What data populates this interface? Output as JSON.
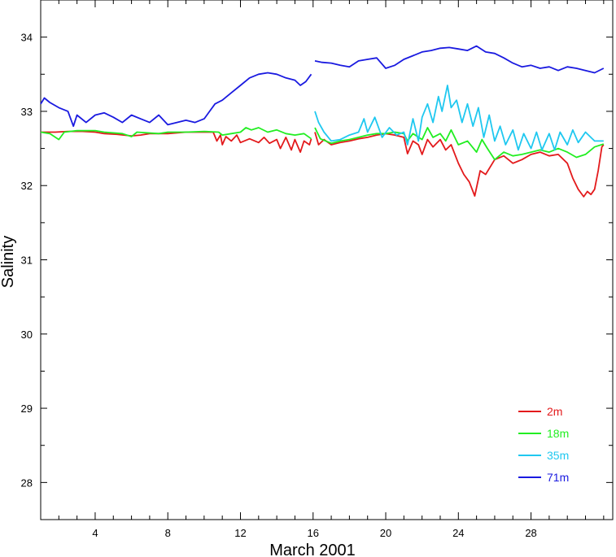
{
  "chart_data": {
    "type": "line",
    "xlabel": "March 2001",
    "ylabel": "Salinity",
    "xlim": [
      1,
      32.5
    ],
    "ylim": [
      27.5,
      34.5
    ],
    "x_ticks": [
      4,
      8,
      12,
      16,
      20,
      24,
      28
    ],
    "x_tick_labels": [
      "4",
      "8",
      "12",
      "16",
      "20",
      "24",
      "28"
    ],
    "y_ticks": [
      28,
      29,
      30,
      31,
      32,
      33,
      34
    ],
    "y_tick_labels": [
      "28",
      "29",
      "30",
      "31",
      "32",
      "33",
      "34"
    ],
    "grid": false,
    "legend_position": "bottom-right",
    "series": [
      {
        "name": "2m",
        "color": "#e31a1c",
        "segments": [
          [
            [
              1.0,
              32.72
            ],
            [
              1.8,
              32.72
            ],
            [
              2.5,
              32.73
            ],
            [
              3.3,
              32.73
            ],
            [
              4.0,
              32.72
            ],
            [
              4.5,
              32.7
            ],
            [
              5.2,
              32.69
            ],
            [
              6.0,
              32.67
            ],
            [
              6.5,
              32.68
            ],
            [
              7.0,
              32.7
            ],
            [
              8.0,
              32.7
            ],
            [
              9.0,
              32.72
            ],
            [
              10.0,
              32.72
            ],
            [
              10.5,
              32.72
            ],
            [
              10.7,
              32.6
            ],
            [
              10.9,
              32.68
            ],
            [
              11.0,
              32.55
            ],
            [
              11.2,
              32.66
            ],
            [
              11.5,
              32.6
            ],
            [
              11.8,
              32.68
            ],
            [
              12.0,
              32.58
            ],
            [
              12.5,
              32.63
            ],
            [
              13.0,
              32.58
            ],
            [
              13.3,
              32.65
            ],
            [
              13.6,
              32.57
            ],
            [
              14.0,
              32.62
            ],
            [
              14.2,
              32.5
            ],
            [
              14.5,
              32.65
            ],
            [
              14.8,
              32.48
            ],
            [
              15.0,
              32.62
            ],
            [
              15.3,
              32.45
            ],
            [
              15.5,
              32.6
            ],
            [
              15.8,
              32.55
            ],
            [
              15.9,
              32.63
            ]
          ],
          [
            [
              16.1,
              32.72
            ],
            [
              16.3,
              32.55
            ],
            [
              16.6,
              32.62
            ],
            [
              17.0,
              32.55
            ],
            [
              17.5,
              32.58
            ],
            [
              18.0,
              32.6
            ],
            [
              18.5,
              32.63
            ],
            [
              19.0,
              32.65
            ],
            [
              19.5,
              32.68
            ],
            [
              20.0,
              32.7
            ],
            [
              20.5,
              32.68
            ],
            [
              21.0,
              32.65
            ],
            [
              21.2,
              32.43
            ],
            [
              21.5,
              32.6
            ],
            [
              21.8,
              32.55
            ],
            [
              22.0,
              32.42
            ],
            [
              22.3,
              32.62
            ],
            [
              22.6,
              32.52
            ],
            [
              23.0,
              32.62
            ],
            [
              23.3,
              32.48
            ],
            [
              23.6,
              32.55
            ],
            [
              24.0,
              32.3
            ],
            [
              24.3,
              32.15
            ],
            [
              24.6,
              32.05
            ],
            [
              24.9,
              31.86
            ],
            [
              25.2,
              32.2
            ],
            [
              25.5,
              32.15
            ],
            [
              26.0,
              32.35
            ],
            [
              26.5,
              32.4
            ],
            [
              27.0,
              32.3
            ],
            [
              27.5,
              32.35
            ],
            [
              28.0,
              32.42
            ],
            [
              28.5,
              32.45
            ],
            [
              29.0,
              32.4
            ],
            [
              29.5,
              32.42
            ],
            [
              30.0,
              32.3
            ],
            [
              30.3,
              32.1
            ],
            [
              30.6,
              31.95
            ],
            [
              30.9,
              31.85
            ],
            [
              31.1,
              31.92
            ],
            [
              31.3,
              31.88
            ],
            [
              31.5,
              31.95
            ],
            [
              31.7,
              32.2
            ],
            [
              31.9,
              32.52
            ],
            [
              32.0,
              32.55
            ]
          ]
        ]
      },
      {
        "name": "18m",
        "color": "#22ee22",
        "segments": [
          [
            [
              1.0,
              32.72
            ],
            [
              1.5,
              32.7
            ],
            [
              2.0,
              32.62
            ],
            [
              2.3,
              32.72
            ],
            [
              3.0,
              32.74
            ],
            [
              4.0,
              32.74
            ],
            [
              4.5,
              32.72
            ],
            [
              5.5,
              32.7
            ],
            [
              6.0,
              32.66
            ],
            [
              6.3,
              32.72
            ],
            [
              7.5,
              32.7
            ],
            [
              8.0,
              32.72
            ],
            [
              9.0,
              32.72
            ],
            [
              10.0,
              32.73
            ],
            [
              10.8,
              32.72
            ],
            [
              11.0,
              32.68
            ],
            [
              11.5,
              32.7
            ],
            [
              12.0,
              32.72
            ],
            [
              12.3,
              32.78
            ],
            [
              12.6,
              32.75
            ],
            [
              13.0,
              32.78
            ],
            [
              13.5,
              32.72
            ],
            [
              14.0,
              32.75
            ],
            [
              14.5,
              32.7
            ],
            [
              15.0,
              32.68
            ],
            [
              15.5,
              32.7
            ],
            [
              15.9,
              32.63
            ]
          ],
          [
            [
              16.1,
              32.78
            ],
            [
              16.4,
              32.63
            ],
            [
              17.0,
              32.57
            ],
            [
              17.5,
              32.6
            ],
            [
              18.0,
              32.62
            ],
            [
              18.5,
              32.65
            ],
            [
              19.0,
              32.68
            ],
            [
              19.5,
              32.7
            ],
            [
              20.0,
              32.7
            ],
            [
              20.5,
              32.72
            ],
            [
              21.0,
              32.7
            ],
            [
              21.2,
              32.6
            ],
            [
              21.5,
              32.7
            ],
            [
              22.0,
              32.62
            ],
            [
              22.3,
              32.78
            ],
            [
              22.6,
              32.65
            ],
            [
              23.0,
              32.7
            ],
            [
              23.3,
              32.6
            ],
            [
              23.6,
              32.75
            ],
            [
              24.0,
              32.55
            ],
            [
              24.5,
              32.6
            ],
            [
              25.0,
              32.45
            ],
            [
              25.3,
              32.62
            ],
            [
              25.6,
              32.5
            ],
            [
              26.0,
              32.35
            ],
            [
              26.5,
              32.45
            ],
            [
              27.0,
              32.4
            ],
            [
              27.5,
              32.42
            ],
            [
              28.0,
              32.45
            ],
            [
              28.5,
              32.48
            ],
            [
              29.0,
              32.45
            ],
            [
              29.5,
              32.5
            ],
            [
              30.0,
              32.45
            ],
            [
              30.5,
              32.38
            ],
            [
              31.0,
              32.42
            ],
            [
              31.5,
              32.52
            ],
            [
              32.0,
              32.56
            ]
          ]
        ]
      },
      {
        "name": "35m",
        "color": "#1fc8f0",
        "segments": [
          [
            [
              16.1,
              33.0
            ],
            [
              16.3,
              32.85
            ],
            [
              16.6,
              32.72
            ],
            [
              17.0,
              32.6
            ],
            [
              17.5,
              32.62
            ],
            [
              18.0,
              32.68
            ],
            [
              18.5,
              32.72
            ],
            [
              18.8,
              32.9
            ],
            [
              19.0,
              32.72
            ],
            [
              19.4,
              32.92
            ],
            [
              19.8,
              32.65
            ],
            [
              20.2,
              32.78
            ],
            [
              20.6,
              32.68
            ],
            [
              21.0,
              32.72
            ],
            [
              21.2,
              32.55
            ],
            [
              21.5,
              32.9
            ],
            [
              21.8,
              32.6
            ],
            [
              22.0,
              32.92
            ],
            [
              22.3,
              33.1
            ],
            [
              22.6,
              32.85
            ],
            [
              22.9,
              33.2
            ],
            [
              23.1,
              33.0
            ],
            [
              23.4,
              33.35
            ],
            [
              23.6,
              33.05
            ],
            [
              23.9,
              33.15
            ],
            [
              24.2,
              32.85
            ],
            [
              24.5,
              33.1
            ],
            [
              24.8,
              32.8
            ],
            [
              25.1,
              33.05
            ],
            [
              25.4,
              32.65
            ],
            [
              25.7,
              32.95
            ],
            [
              26.0,
              32.6
            ],
            [
              26.3,
              32.8
            ],
            [
              26.6,
              32.55
            ],
            [
              27.0,
              32.75
            ],
            [
              27.3,
              32.48
            ],
            [
              27.6,
              32.7
            ],
            [
              28.0,
              32.5
            ],
            [
              28.3,
              32.72
            ],
            [
              28.6,
              32.48
            ],
            [
              29.0,
              32.7
            ],
            [
              29.3,
              32.48
            ],
            [
              29.6,
              32.72
            ],
            [
              30.0,
              32.55
            ],
            [
              30.3,
              32.75
            ],
            [
              30.6,
              32.58
            ],
            [
              31.0,
              32.72
            ],
            [
              31.5,
              32.6
            ],
            [
              32.0,
              32.6
            ]
          ]
        ]
      },
      {
        "name": "71m",
        "color": "#1a1ae0",
        "segments": [
          [
            [
              1.0,
              33.1
            ],
            [
              1.2,
              33.18
            ],
            [
              1.5,
              33.12
            ],
            [
              2.0,
              33.05
            ],
            [
              2.5,
              33.0
            ],
            [
              2.8,
              32.8
            ],
            [
              3.0,
              32.95
            ],
            [
              3.5,
              32.85
            ],
            [
              4.0,
              32.95
            ],
            [
              4.5,
              32.98
            ],
            [
              5.0,
              32.92
            ],
            [
              5.5,
              32.85
            ],
            [
              6.0,
              32.95
            ],
            [
              6.5,
              32.9
            ],
            [
              7.0,
              32.85
            ],
            [
              7.5,
              32.95
            ],
            [
              8.0,
              32.82
            ],
            [
              8.5,
              32.85
            ],
            [
              9.0,
              32.88
            ],
            [
              9.5,
              32.85
            ],
            [
              10.0,
              32.9
            ],
            [
              10.3,
              33.0
            ],
            [
              10.6,
              33.1
            ],
            [
              11.0,
              33.15
            ],
            [
              11.5,
              33.25
            ],
            [
              12.0,
              33.35
            ],
            [
              12.5,
              33.45
            ],
            [
              13.0,
              33.5
            ],
            [
              13.5,
              33.52
            ],
            [
              14.0,
              33.5
            ],
            [
              14.5,
              33.45
            ],
            [
              15.0,
              33.42
            ],
            [
              15.3,
              33.35
            ],
            [
              15.6,
              33.4
            ],
            [
              15.9,
              33.5
            ]
          ],
          [
            [
              16.1,
              33.68
            ],
            [
              16.5,
              33.66
            ],
            [
              17.0,
              33.65
            ],
            [
              17.5,
              33.62
            ],
            [
              18.0,
              33.6
            ],
            [
              18.5,
              33.68
            ],
            [
              19.0,
              33.7
            ],
            [
              19.5,
              33.72
            ],
            [
              20.0,
              33.58
            ],
            [
              20.5,
              33.62
            ],
            [
              21.0,
              33.7
            ],
            [
              21.5,
              33.75
            ],
            [
              22.0,
              33.8
            ],
            [
              22.5,
              33.82
            ],
            [
              23.0,
              33.85
            ],
            [
              23.5,
              33.86
            ],
            [
              24.0,
              33.84
            ],
            [
              24.5,
              33.82
            ],
            [
              25.0,
              33.88
            ],
            [
              25.5,
              33.8
            ],
            [
              26.0,
              33.78
            ],
            [
              26.5,
              33.72
            ],
            [
              27.0,
              33.65
            ],
            [
              27.5,
              33.6
            ],
            [
              28.0,
              33.62
            ],
            [
              28.5,
              33.58
            ],
            [
              29.0,
              33.6
            ],
            [
              29.5,
              33.55
            ],
            [
              30.0,
              33.6
            ],
            [
              30.5,
              33.58
            ],
            [
              31.0,
              33.55
            ],
            [
              31.5,
              33.52
            ],
            [
              32.0,
              33.58
            ]
          ]
        ]
      }
    ]
  }
}
